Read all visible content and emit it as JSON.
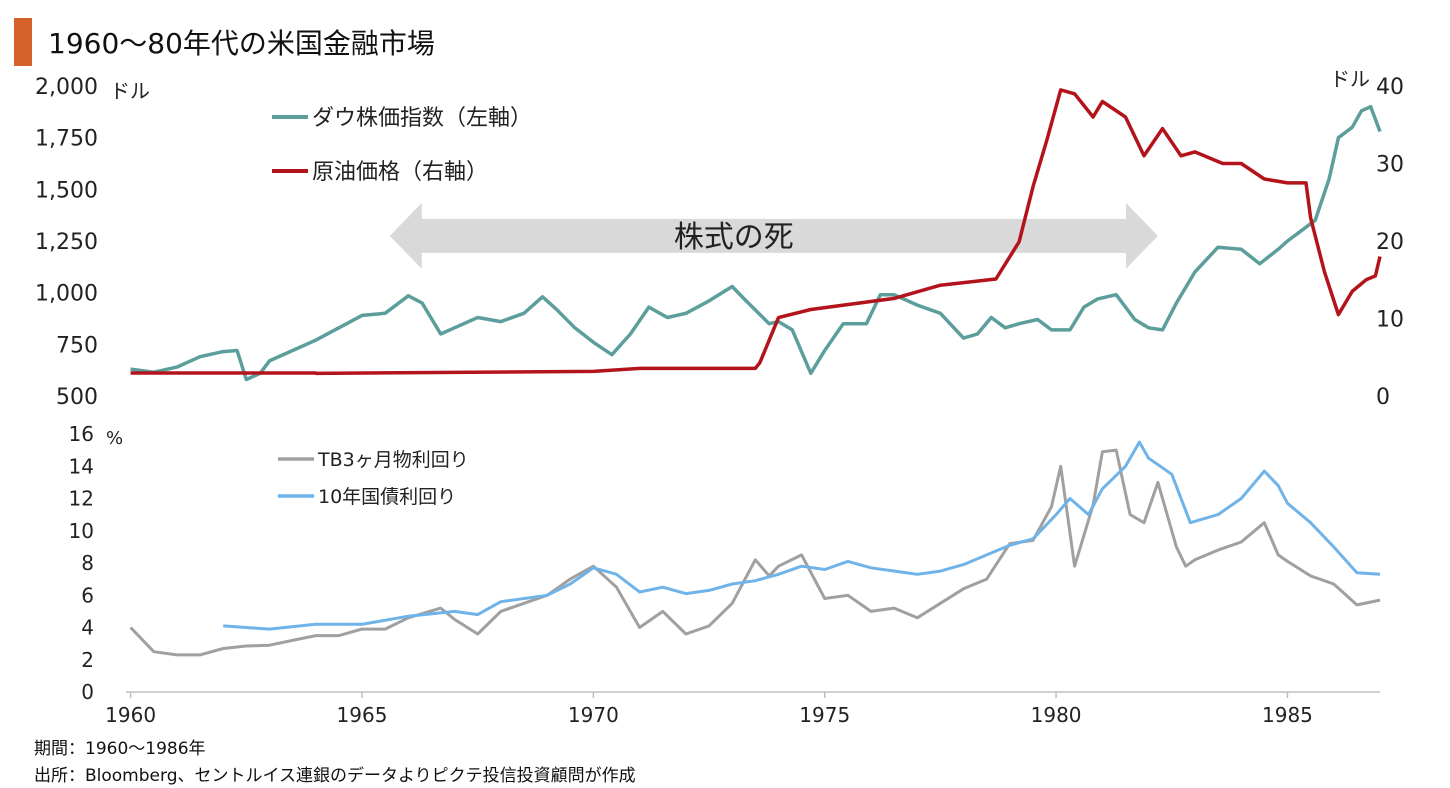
{
  "title": "1960～80年代の米国金融市場",
  "accent_color": "#d4622a",
  "footer": {
    "period": "期間：1960～1986年",
    "source": "出所：Bloomberg、セントルイス連銀のデータよりピクテ投信投資顧問が作成"
  },
  "chart_data": [
    {
      "type": "line",
      "title": "",
      "annotation": {
        "text": "株式の死",
        "arrow": "double",
        "x_from": 1965.6,
        "x_to": 1982.2,
        "y_at_left_axis": 1275
      },
      "x_ticks": [
        1960,
        1965,
        1970,
        1975,
        1980,
        1985
      ],
      "x_range": [
        1959.9,
        1987.0
      ],
      "left_axis": {
        "unit": "ドル",
        "range": [
          500,
          2000
        ],
        "tick_labels": [
          "500",
          "750",
          "1,000",
          "1,250",
          "1,500",
          "1,750",
          "2,000"
        ]
      },
      "right_axis": {
        "unit": "ドル",
        "range": [
          0,
          40
        ],
        "tick_labels": [
          "0",
          "10",
          "20",
          "30",
          "40"
        ]
      },
      "grid": false,
      "legend": "top-left",
      "series": [
        {
          "name": "ダウ株価指数（左軸）",
          "axis": "left",
          "color": "#5b9e9c",
          "points": [
            [
              1960.0,
              630
            ],
            [
              1960.5,
              615
            ],
            [
              1961.0,
              640
            ],
            [
              1961.5,
              690
            ],
            [
              1962.0,
              715
            ],
            [
              1962.3,
              720
            ],
            [
              1962.5,
              580
            ],
            [
              1962.8,
              610
            ],
            [
              1963.0,
              670
            ],
            [
              1963.5,
              720
            ],
            [
              1964.0,
              770
            ],
            [
              1964.5,
              830
            ],
            [
              1965.0,
              890
            ],
            [
              1965.5,
              900
            ],
            [
              1966.0,
              985
            ],
            [
              1966.3,
              950
            ],
            [
              1966.7,
              800
            ],
            [
              1967.0,
              830
            ],
            [
              1967.5,
              880
            ],
            [
              1968.0,
              860
            ],
            [
              1968.5,
              900
            ],
            [
              1968.9,
              980
            ],
            [
              1969.2,
              920
            ],
            [
              1969.6,
              830
            ],
            [
              1970.0,
              760
            ],
            [
              1970.4,
              700
            ],
            [
              1970.8,
              800
            ],
            [
              1971.2,
              930
            ],
            [
              1971.6,
              880
            ],
            [
              1972.0,
              900
            ],
            [
              1972.5,
              960
            ],
            [
              1973.0,
              1030
            ],
            [
              1973.3,
              960
            ],
            [
              1973.8,
              850
            ],
            [
              1974.0,
              860
            ],
            [
              1974.3,
              820
            ],
            [
              1974.7,
              610
            ],
            [
              1975.0,
              720
            ],
            [
              1975.4,
              850
            ],
            [
              1975.9,
              850
            ],
            [
              1976.2,
              990
            ],
            [
              1976.5,
              990
            ],
            [
              1977.0,
              940
            ],
            [
              1977.5,
              900
            ],
            [
              1978.0,
              780
            ],
            [
              1978.3,
              800
            ],
            [
              1978.6,
              880
            ],
            [
              1978.9,
              830
            ],
            [
              1979.2,
              850
            ],
            [
              1979.6,
              870
            ],
            [
              1979.9,
              820
            ],
            [
              1980.3,
              820
            ],
            [
              1980.6,
              930
            ],
            [
              1980.9,
              970
            ],
            [
              1981.3,
              990
            ],
            [
              1981.7,
              870
            ],
            [
              1982.0,
              830
            ],
            [
              1982.3,
              820
            ],
            [
              1982.6,
              950
            ],
            [
              1983.0,
              1100
            ],
            [
              1983.5,
              1220
            ],
            [
              1984.0,
              1210
            ],
            [
              1984.4,
              1140
            ],
            [
              1984.8,
              1210
            ],
            [
              1985.0,
              1250
            ],
            [
              1985.3,
              1300
            ],
            [
              1985.6,
              1350
            ],
            [
              1985.9,
              1550
            ],
            [
              1986.1,
              1750
            ],
            [
              1986.4,
              1800
            ],
            [
              1986.6,
              1880
            ],
            [
              1986.8,
              1900
            ],
            [
              1987.0,
              1780
            ]
          ]
        },
        {
          "name": "原油価格（右軸）",
          "axis": "right",
          "color": "#b3131b",
          "points": [
            [
              1960.0,
              2.97
            ],
            [
              1964.0,
              2.97
            ],
            [
              1964.01,
              2.92
            ],
            [
              1970.0,
              3.18
            ],
            [
              1971.0,
              3.56
            ],
            [
              1973.5,
              3.56
            ],
            [
              1973.6,
              4.31
            ],
            [
              1974.0,
              10.11
            ],
            [
              1974.7,
              11.16
            ],
            [
              1976.5,
              12.6
            ],
            [
              1977.5,
              14.3
            ],
            [
              1978.7,
              15.1
            ],
            [
              1979.2,
              19.9
            ],
            [
              1979.5,
              27.0
            ],
            [
              1979.8,
              33.0
            ],
            [
              1980.1,
              39.5
            ],
            [
              1980.4,
              39.0
            ],
            [
              1980.8,
              36.0
            ],
            [
              1981.0,
              38.0
            ],
            [
              1981.5,
              36.0
            ],
            [
              1981.9,
              31.0
            ],
            [
              1982.3,
              34.5
            ],
            [
              1982.7,
              31.0
            ],
            [
              1983.0,
              31.5
            ],
            [
              1983.6,
              30.0
            ],
            [
              1984.0,
              30.0
            ],
            [
              1984.5,
              28.0
            ],
            [
              1985.0,
              27.5
            ],
            [
              1985.4,
              27.5
            ],
            [
              1985.5,
              23.0
            ],
            [
              1985.8,
              16.0
            ],
            [
              1986.1,
              10.5
            ],
            [
              1986.4,
              13.5
            ],
            [
              1986.7,
              15.0
            ],
            [
              1986.9,
              15.5
            ],
            [
              1987.0,
              18.0
            ]
          ]
        }
      ]
    },
    {
      "type": "line",
      "title": "",
      "x_ticks": [
        1960,
        1965,
        1970,
        1975,
        1980,
        1985
      ],
      "x_range": [
        1959.9,
        1987.0
      ],
      "y_axis": {
        "unit": "%",
        "range": [
          0,
          16
        ],
        "tick_labels": [
          "0",
          "2",
          "4",
          "6",
          "8",
          "10",
          "12",
          "14",
          "16"
        ]
      },
      "grid": false,
      "legend": "top-left",
      "series": [
        {
          "name": "TB3ヶ月物利回り",
          "color": "#a0a0a0",
          "points": [
            [
              1960.0,
              4.0
            ],
            [
              1960.5,
              2.5
            ],
            [
              1961.0,
              2.3
            ],
            [
              1961.5,
              2.3
            ],
            [
              1962.0,
              2.7
            ],
            [
              1962.5,
              2.85
            ],
            [
              1963.0,
              2.9
            ],
            [
              1963.5,
              3.2
            ],
            [
              1964.0,
              3.5
            ],
            [
              1964.5,
              3.5
            ],
            [
              1965.0,
              3.9
            ],
            [
              1965.5,
              3.9
            ],
            [
              1966.0,
              4.6
            ],
            [
              1966.7,
              5.2
            ],
            [
              1967.0,
              4.5
            ],
            [
              1967.5,
              3.6
            ],
            [
              1968.0,
              5.0
            ],
            [
              1968.5,
              5.5
            ],
            [
              1969.0,
              6.0
            ],
            [
              1969.5,
              7.0
            ],
            [
              1970.0,
              7.8
            ],
            [
              1970.5,
              6.5
            ],
            [
              1971.0,
              4.0
            ],
            [
              1971.5,
              5.0
            ],
            [
              1972.0,
              3.6
            ],
            [
              1972.5,
              4.1
            ],
            [
              1973.0,
              5.5
            ],
            [
              1973.5,
              8.2
            ],
            [
              1973.8,
              7.2
            ],
            [
              1974.0,
              7.8
            ],
            [
              1974.5,
              8.5
            ],
            [
              1975.0,
              5.8
            ],
            [
              1975.5,
              6.0
            ],
            [
              1976.0,
              5.0
            ],
            [
              1976.5,
              5.2
            ],
            [
              1977.0,
              4.6
            ],
            [
              1977.5,
              5.5
            ],
            [
              1978.0,
              6.4
            ],
            [
              1978.5,
              7.0
            ],
            [
              1979.0,
              9.2
            ],
            [
              1979.5,
              9.4
            ],
            [
              1979.9,
              11.5
            ],
            [
              1980.1,
              14.0
            ],
            [
              1980.4,
              7.8
            ],
            [
              1980.8,
              11.6
            ],
            [
              1981.0,
              14.9
            ],
            [
              1981.3,
              15.0
            ],
            [
              1981.6,
              11.0
            ],
            [
              1981.9,
              10.5
            ],
            [
              1982.2,
              13.0
            ],
            [
              1982.6,
              9.0
            ],
            [
              1982.8,
              7.8
            ],
            [
              1983.0,
              8.2
            ],
            [
              1983.5,
              8.8
            ],
            [
              1984.0,
              9.3
            ],
            [
              1984.5,
              10.5
            ],
            [
              1984.8,
              8.5
            ],
            [
              1985.0,
              8.1
            ],
            [
              1985.5,
              7.2
            ],
            [
              1986.0,
              6.7
            ],
            [
              1986.5,
              5.4
            ],
            [
              1987.0,
              5.7
            ]
          ]
        },
        {
          "name": "10年国債利回り",
          "color": "#6fb3e8",
          "points": [
            [
              1962.0,
              4.1
            ],
            [
              1963.0,
              3.9
            ],
            [
              1964.0,
              4.2
            ],
            [
              1965.0,
              4.2
            ],
            [
              1966.0,
              4.7
            ],
            [
              1967.0,
              5.0
            ],
            [
              1967.5,
              4.8
            ],
            [
              1968.0,
              5.6
            ],
            [
              1969.0,
              6.0
            ],
            [
              1969.5,
              6.7
            ],
            [
              1970.0,
              7.7
            ],
            [
              1970.5,
              7.3
            ],
            [
              1971.0,
              6.2
            ],
            [
              1971.5,
              6.5
            ],
            [
              1972.0,
              6.1
            ],
            [
              1972.5,
              6.3
            ],
            [
              1973.0,
              6.7
            ],
            [
              1973.5,
              6.9
            ],
            [
              1974.0,
              7.3
            ],
            [
              1974.5,
              7.8
            ],
            [
              1975.0,
              7.6
            ],
            [
              1975.5,
              8.1
            ],
            [
              1976.0,
              7.7
            ],
            [
              1977.0,
              7.3
            ],
            [
              1977.5,
              7.5
            ],
            [
              1978.0,
              7.9
            ],
            [
              1978.5,
              8.5
            ],
            [
              1979.0,
              9.1
            ],
            [
              1979.5,
              9.5
            ],
            [
              1980.0,
              11.0
            ],
            [
              1980.3,
              12.0
            ],
            [
              1980.7,
              11.0
            ],
            [
              1981.0,
              12.6
            ],
            [
              1981.5,
              14.0
            ],
            [
              1981.8,
              15.5
            ],
            [
              1982.0,
              14.5
            ],
            [
              1982.5,
              13.5
            ],
            [
              1982.9,
              10.5
            ],
            [
              1983.5,
              11.0
            ],
            [
              1984.0,
              12.0
            ],
            [
              1984.5,
              13.7
            ],
            [
              1984.8,
              12.8
            ],
            [
              1985.0,
              11.7
            ],
            [
              1985.5,
              10.5
            ],
            [
              1986.0,
              9.0
            ],
            [
              1986.5,
              7.4
            ],
            [
              1987.0,
              7.3
            ]
          ]
        }
      ]
    }
  ]
}
